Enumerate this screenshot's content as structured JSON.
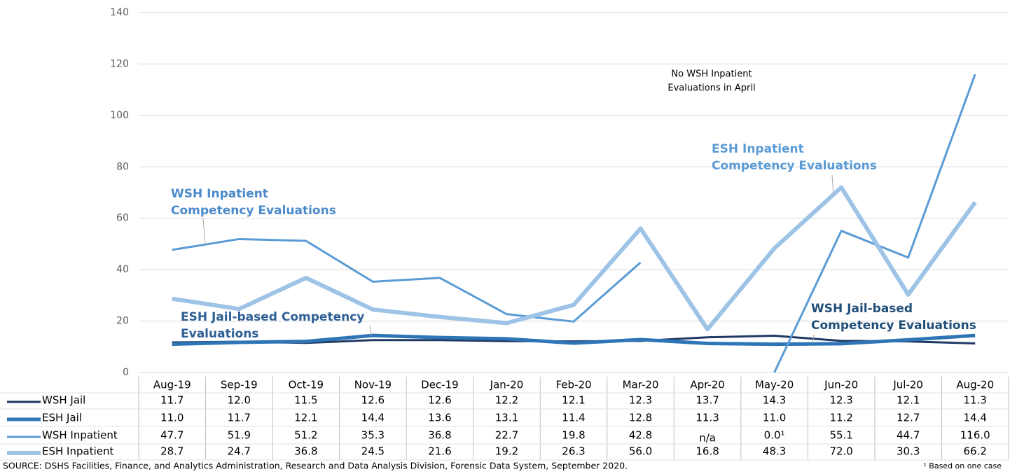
{
  "chart_data": {
    "type": "line",
    "categories": [
      "Aug-19",
      "Sep-19",
      "Oct-19",
      "Nov-19",
      "Dec-19",
      "Jan-20",
      "Feb-20",
      "Mar-20",
      "Apr-20",
      "May-20",
      "Jun-20",
      "Jul-20",
      "Aug-20"
    ],
    "series": [
      {
        "name": "WSH Jail",
        "color": "#1f3864",
        "values": [
          11.7,
          12.0,
          11.5,
          12.6,
          12.6,
          12.2,
          12.1,
          12.3,
          13.7,
          14.3,
          12.3,
          12.1,
          11.3
        ],
        "value_labels": [
          "11.7",
          "12.0",
          "11.5",
          "12.6",
          "12.6",
          "12.2",
          "12.1",
          "12.3",
          "13.7",
          "14.3",
          "12.3",
          "12.1",
          "11.3"
        ]
      },
      {
        "name": "ESH Jail",
        "color": "#2e75b6",
        "values": [
          11.0,
          11.7,
          12.1,
          14.4,
          13.6,
          13.1,
          11.4,
          12.8,
          11.3,
          11.0,
          11.2,
          12.7,
          14.4
        ],
        "value_labels": [
          "11.0",
          "11.7",
          "12.1",
          "14.4",
          "13.6",
          "13.1",
          "11.4",
          "12.8",
          "11.3",
          "11.0",
          "11.2",
          "12.7",
          "14.4"
        ]
      },
      {
        "name": "WSH Inpatient",
        "color": "#5b9bd5",
        "values": [
          47.7,
          51.9,
          51.2,
          35.3,
          36.8,
          22.7,
          19.8,
          42.8,
          null,
          0.0,
          55.1,
          44.7,
          116.0
        ],
        "value_labels": [
          "47.7",
          "51.9",
          "51.2",
          "35.3",
          "36.8",
          "22.7",
          "19.8",
          "42.8",
          "n/a",
          "0.0¹",
          "55.1",
          "44.7",
          "116.0"
        ]
      },
      {
        "name": "ESH Inpatient",
        "color": "#9dc3e6",
        "values": [
          28.7,
          24.7,
          36.8,
          24.5,
          21.6,
          19.2,
          26.3,
          56.0,
          16.8,
          48.3,
          72.0,
          30.3,
          66.2
        ],
        "value_labels": [
          "28.7",
          "24.7",
          "36.8",
          "24.5",
          "21.6",
          "19.2",
          "26.3",
          "56.0",
          "16.8",
          "48.3",
          "72.0",
          "30.3",
          "66.2"
        ]
      }
    ],
    "ylim": [
      0,
      140
    ],
    "yticks": [
      0,
      20,
      40,
      60,
      80,
      100,
      120,
      140
    ],
    "grid": true,
    "annotations": [
      [
        "WSH Inpatient",
        "Competency Evaluations"
      ],
      [
        "ESH Inpatient",
        "Competency Evaluations"
      ],
      [
        "ESH Jail-based Competency",
        "Evaluations"
      ],
      [
        "WSH Jail-based",
        "Competency Evaluations"
      ],
      [
        "No WSH Inpatient",
        "Evaluations in April"
      ]
    ],
    "source": "SOURCE: DSHS Facilities, Finance, and Analytics Administration, Research and Data Analysis Division, Forensic Data System, September 2020.",
    "footnote": "¹ Based on one case"
  }
}
